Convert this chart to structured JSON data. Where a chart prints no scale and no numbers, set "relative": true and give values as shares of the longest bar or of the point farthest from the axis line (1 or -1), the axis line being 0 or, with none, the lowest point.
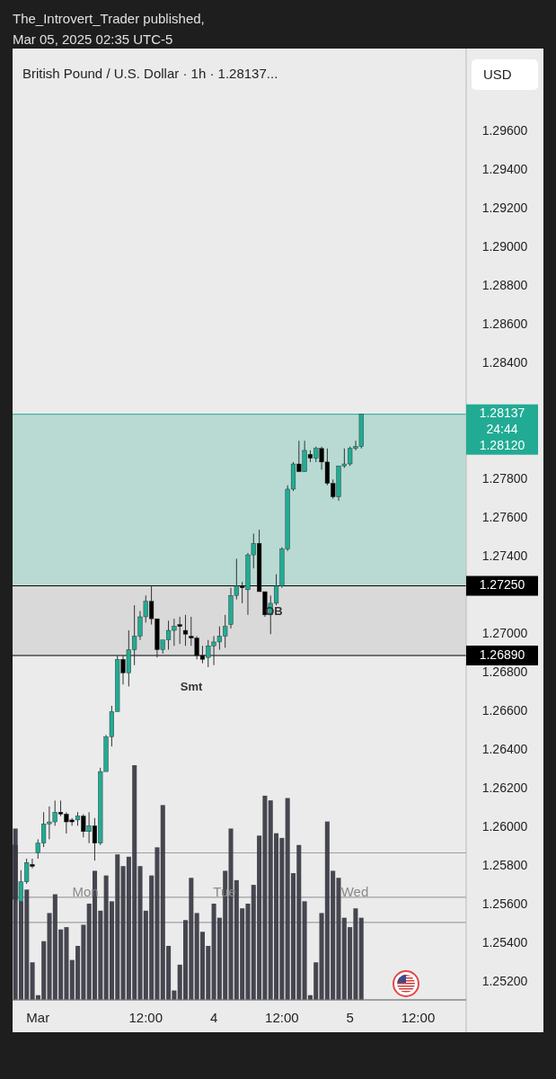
{
  "chart_data": [
    {
      "type": "candlestick",
      "title": "British Pound / U.S. Dollar · 1h · 1.28137...",
      "ylabel": "USD",
      "colors": [
        "#000000",
        "#22ab94",
        "#22ab94",
        "#000000",
        "#22ab94",
        "#22ab94",
        "#22ab94",
        "#22ab94",
        "#000000",
        "#000000",
        "#000000",
        "#22ab94",
        "#000000",
        "#22ab94",
        "#000000",
        "#22ab94",
        "#22ab94",
        "#22ab94",
        "#22ab94",
        "#000000",
        "#22ab94",
        "#22ab94",
        "#22ab94",
        "#22ab94",
        "#000000",
        "#000000",
        "#22ab94",
        "#22ab94",
        "#22ab94",
        "#000000",
        "#000000",
        "#000000",
        "#000000",
        "#000000",
        "#22ab94",
        "#22ab94",
        "#22ab94",
        "#22ab94",
        "#22ab94",
        "#22ab94",
        "#000000",
        "#22ab94",
        "#22ab94",
        "#000000",
        "#000000",
        "#22ab94",
        "#22ab94",
        "#22ab94",
        "#22ab94",
        "#22ab94",
        "#000000",
        "#22ab94",
        "#000000",
        "#22ab94",
        "#000000",
        "#000000",
        "#000000",
        "#22ab94",
        "#22ab94",
        "#22ab94",
        "#22ab94",
        "#22ab94",
        null,
        null,
        null,
        null,
        null,
        null,
        null,
        null,
        null,
        null,
        null,
        null,
        null,
        null,
        null,
        null,
        null,
        null
      ],
      "categories": [
        null,
        null,
        null,
        null,
        "Mar",
        null,
        null,
        null,
        null,
        null,
        null,
        null,
        null,
        null,
        null,
        null,
        null,
        null,
        null,
        null,
        null,
        null,
        null,
        "12:00",
        null,
        null,
        null,
        null,
        null,
        null,
        null,
        null,
        null,
        null,
        null,
        "4",
        null,
        null,
        null,
        null,
        null,
        null,
        null,
        null,
        null,
        null,
        null,
        "12:00",
        null,
        null,
        null,
        null,
        null,
        null,
        null,
        null,
        null,
        null,
        null,
        "5",
        null,
        null,
        null,
        null,
        null,
        null,
        null,
        null,
        null,
        null,
        null,
        "12:00",
        null,
        null,
        null,
        null,
        null,
        null,
        null,
        null
      ],
      "ohlc": [
        [
          1.2591,
          1.2592,
          1.2561,
          1.2563
        ],
        [
          1.2562,
          1.2578,
          1.2561,
          1.2572
        ],
        [
          1.2572,
          1.2584,
          1.2571,
          1.2582
        ],
        [
          1.2581,
          1.2584,
          1.2579,
          1.258
        ],
        [
          1.2587,
          1.2594,
          1.2584,
          1.2592
        ],
        [
          1.2592,
          1.2608,
          1.259,
          1.2602
        ],
        [
          1.2602,
          1.2611,
          1.2594,
          1.2603
        ],
        [
          1.2603,
          1.2614,
          1.2601,
          1.2608
        ],
        [
          1.2608,
          1.2614,
          1.2606,
          1.2607
        ],
        [
          1.2607,
          1.2608,
          1.2597,
          1.2603
        ],
        [
          1.2604,
          1.2605,
          1.2601,
          1.2603
        ],
        [
          1.2604,
          1.2608,
          1.2601,
          1.2606
        ],
        [
          1.2606,
          1.2607,
          1.2595,
          1.2598
        ],
        [
          1.2598,
          1.2608,
          1.2592,
          1.2601
        ],
        [
          1.2601,
          1.2605,
          1.2583,
          1.2592
        ],
        [
          1.2592,
          1.2631,
          1.2591,
          1.2629
        ],
        [
          1.2629,
          1.2648,
          1.2629,
          1.2647
        ],
        [
          1.2647,
          1.2663,
          1.2642,
          1.266
        ],
        [
          1.266,
          1.2689,
          1.266,
          1.2687
        ],
        [
          1.2687,
          1.2689,
          1.2674,
          1.268
        ],
        [
          1.268,
          1.2702,
          1.2673,
          1.2692
        ],
        [
          1.2692,
          1.2715,
          1.2684,
          1.2699
        ],
        [
          1.2699,
          1.2712,
          1.2697,
          1.2709
        ],
        [
          1.2709,
          1.272,
          1.2706,
          1.2717
        ],
        [
          1.2717,
          1.2725,
          1.2705,
          1.2708
        ],
        [
          1.2708,
          1.2708,
          1.2688,
          1.2692
        ],
        [
          1.2692,
          1.2697,
          1.269,
          1.2697
        ],
        [
          1.2697,
          1.2707,
          1.2692,
          1.2702
        ],
        [
          1.2702,
          1.2708,
          1.2694,
          1.2704
        ],
        [
          1.2705,
          1.2709,
          1.2695,
          1.2704
        ],
        [
          1.2702,
          1.271,
          1.2694,
          1.27
        ],
        [
          1.2699,
          1.2709,
          1.2694,
          1.2698
        ],
        [
          1.2698,
          1.2699,
          1.2687,
          1.2689
        ],
        [
          1.2689,
          1.2694,
          1.2685,
          1.2687
        ],
        [
          1.2688,
          1.2697,
          1.2683,
          1.2694
        ],
        [
          1.2694,
          1.2699,
          1.2684,
          1.2696
        ],
        [
          1.2696,
          1.2704,
          1.2692,
          1.2699
        ],
        [
          1.2699,
          1.271,
          1.2693,
          1.2704
        ],
        [
          1.2705,
          1.2724,
          1.2703,
          1.272
        ],
        [
          1.272,
          1.2739,
          1.2718,
          1.2725
        ],
        [
          1.2725,
          1.2727,
          1.2716,
          1.2724
        ],
        [
          1.2723,
          1.2742,
          1.271,
          1.2741
        ],
        [
          1.2741,
          1.2752,
          1.2734,
          1.2747
        ],
        [
          1.2747,
          1.2754,
          1.2722,
          1.2722
        ],
        [
          1.2722,
          1.2722,
          1.2709,
          1.271
        ],
        [
          1.271,
          1.272,
          1.27,
          1.2716
        ],
        [
          1.2716,
          1.2731,
          1.2715,
          1.2725
        ],
        [
          1.2725,
          1.2745,
          1.2724,
          1.2744
        ],
        [
          1.2744,
          1.2777,
          1.2743,
          1.2775
        ],
        [
          1.2775,
          1.2789,
          1.2774,
          1.2788
        ],
        [
          1.2788,
          1.28,
          1.2784,
          1.2784
        ],
        [
          1.2784,
          1.28,
          1.2784,
          1.2795
        ],
        [
          1.2793,
          1.2795,
          1.2789,
          1.2791
        ],
        [
          1.2791,
          1.2797,
          1.2789,
          1.2796
        ],
        [
          1.2796,
          1.2797,
          1.2785,
          1.2789
        ],
        [
          1.2789,
          1.2796,
          1.2777,
          1.2778
        ],
        [
          1.2778,
          1.278,
          1.277,
          1.2771
        ],
        [
          1.2771,
          1.2787,
          1.2769,
          1.2787
        ],
        [
          1.2787,
          1.2796,
          1.2786,
          1.2788
        ],
        [
          1.2788,
          1.2797,
          1.2787,
          1.2796
        ],
        [
          1.2796,
          1.28,
          1.2795,
          1.2797
        ],
        [
          1.2797,
          1.28137,
          1.2796,
          1.28137
        ],
        null,
        null,
        null,
        null,
        null,
        null,
        null,
        null,
        null,
        null,
        null,
        null,
        null,
        null,
        null,
        null,
        null,
        null
      ],
      "ylim": [
        1.2511,
        1.2999
      ],
      "yticks": [
        {
          "value": 1.252,
          "label": "1.25200"
        },
        {
          "value": 1.254,
          "label": "1.25400"
        },
        {
          "value": 1.256,
          "label": "1.25600"
        },
        {
          "value": 1.258,
          "label": "1.25800"
        },
        {
          "value": 1.26,
          "label": "1.26000"
        },
        {
          "value": 1.262,
          "label": "1.26200"
        },
        {
          "value": 1.264,
          "label": "1.26400"
        },
        {
          "value": 1.266,
          "label": "1.26600"
        },
        {
          "value": 1.268,
          "label": "1.26800"
        },
        {
          "value": 1.27,
          "label": "1.27000"
        },
        {
          "value": 1.274,
          "label": "1.27400"
        },
        {
          "value": 1.276,
          "label": "1.27600"
        },
        {
          "value": 1.278,
          "label": "1.27800"
        },
        {
          "value": 1.284,
          "label": "1.28400"
        },
        {
          "value": 1.286,
          "label": "1.28600"
        },
        {
          "value": 1.288,
          "label": "1.28800"
        },
        {
          "value": 1.29,
          "label": "1.29000"
        },
        {
          "value": 1.292,
          "label": "1.29200"
        },
        {
          "value": 1.294,
          "label": "1.29400"
        },
        {
          "value": 1.296,
          "label": "1.29600"
        }
      ],
      "bands": [
        {
          "axis": "y",
          "from": 1.2725,
          "to": 1.28137,
          "color": "#7cc6b5"
        },
        {
          "axis": "y",
          "from": 1.2689,
          "to": 1.2725,
          "color": "#c4c4c4"
        }
      ],
      "ref_lines": [
        {
          "axis": "y",
          "value": 1.28137,
          "label": "1.28137",
          "color": "#22ab94"
        },
        {
          "axis": "y",
          "value": 1.2725,
          "label": "1.27250",
          "color": "#000000"
        },
        {
          "axis": "y",
          "value": 1.2689,
          "label": "1.26890",
          "color": "#000000"
        },
        {
          "axis": "y",
          "value": 1.2587,
          "color": "#a0a0a0"
        },
        {
          "axis": "y",
          "value": 1.2564,
          "color": "#a0a0a0"
        },
        {
          "axis": "y",
          "value": 1.2551,
          "color": "#a0a0a0"
        }
      ],
      "annotations": [
        "The_Introvert_Trader published,",
        "Mar 05, 2025 02:35 UTC-5",
        "24:44",
        "1.28120",
        "Smt",
        "OB",
        "Mon",
        "Tue",
        "Wed"
      ]
    },
    {
      "type": "bar",
      "relative": true,
      "color": "#3c3d47",
      "categories": [
        null,
        null,
        null,
        null,
        null,
        null,
        null,
        null,
        null,
        null,
        null,
        null,
        null,
        null,
        null,
        null,
        null,
        null,
        null,
        null,
        null,
        null,
        null,
        null,
        null,
        null,
        null,
        null,
        null,
        null,
        null,
        null,
        null,
        null,
        null,
        null,
        null,
        null,
        null,
        null,
        null,
        null,
        null,
        null,
        null,
        null,
        null,
        null,
        null,
        null,
        null,
        null,
        null,
        null,
        null,
        null,
        null,
        null,
        null,
        null,
        null,
        null,
        null,
        null,
        null,
        null,
        null,
        null,
        null,
        null,
        null,
        null,
        null,
        null,
        null,
        null,
        null,
        null,
        null,
        null
      ],
      "values": [
        0.73,
        0.42,
        0.47,
        0.16,
        0.02,
        0.25,
        0.37,
        0.45,
        0.3,
        0.31,
        0.17,
        0.23,
        0.32,
        0.41,
        0.55,
        0.38,
        0.53,
        0.42,
        0.62,
        0.57,
        0.61,
        1,
        0.57,
        0.38,
        0.53,
        0.65,
        0.83,
        0.23,
        0.04,
        0.15,
        0.34,
        0.52,
        0.37,
        0.29,
        0.23,
        0.41,
        0.35,
        0.55,
        0.73,
        0.51,
        0.39,
        0.41,
        0.49,
        0.7,
        0.87,
        0.85,
        0.71,
        0.69,
        0.86,
        0.54,
        0.66,
        0.42,
        0.02,
        0.16,
        0.37,
        0.76,
        0.55,
        0.52,
        0.35,
        0.31,
        0.39,
        0.35,
        null,
        null,
        null,
        null,
        null,
        null,
        null,
        null,
        null,
        null,
        null,
        null,
        null,
        null,
        null,
        null,
        null,
        null
      ]
    }
  ]
}
